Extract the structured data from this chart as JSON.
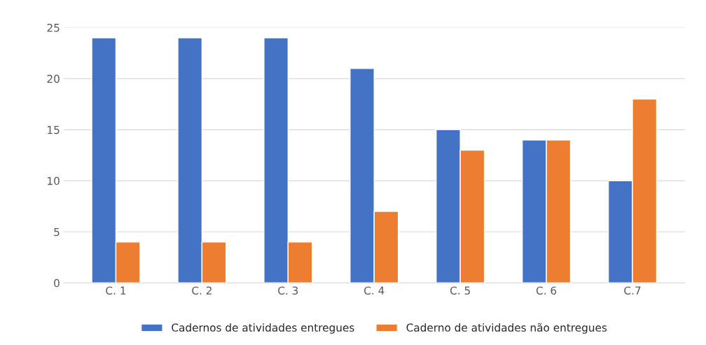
{
  "chart_data": {
    "type": "bar",
    "categories": [
      "C. 1",
      "C. 2",
      "C. 3",
      "C. 4",
      "C. 5",
      "C. 6",
      "C.7"
    ],
    "series": [
      {
        "name": "Cadernos de atividades entregues",
        "color": "#4472c4",
        "values": [
          24,
          24,
          24,
          21,
          15,
          14,
          10
        ]
      },
      {
        "name": "Caderno de atividades não entregues",
        "color": "#ed7d31",
        "values": [
          4,
          4,
          4,
          7,
          13,
          14,
          18
        ]
      }
    ],
    "ylim": [
      0,
      25
    ],
    "yticks": [
      0,
      5,
      10,
      15,
      20,
      25
    ],
    "grid": "y",
    "legend": "bottom"
  }
}
